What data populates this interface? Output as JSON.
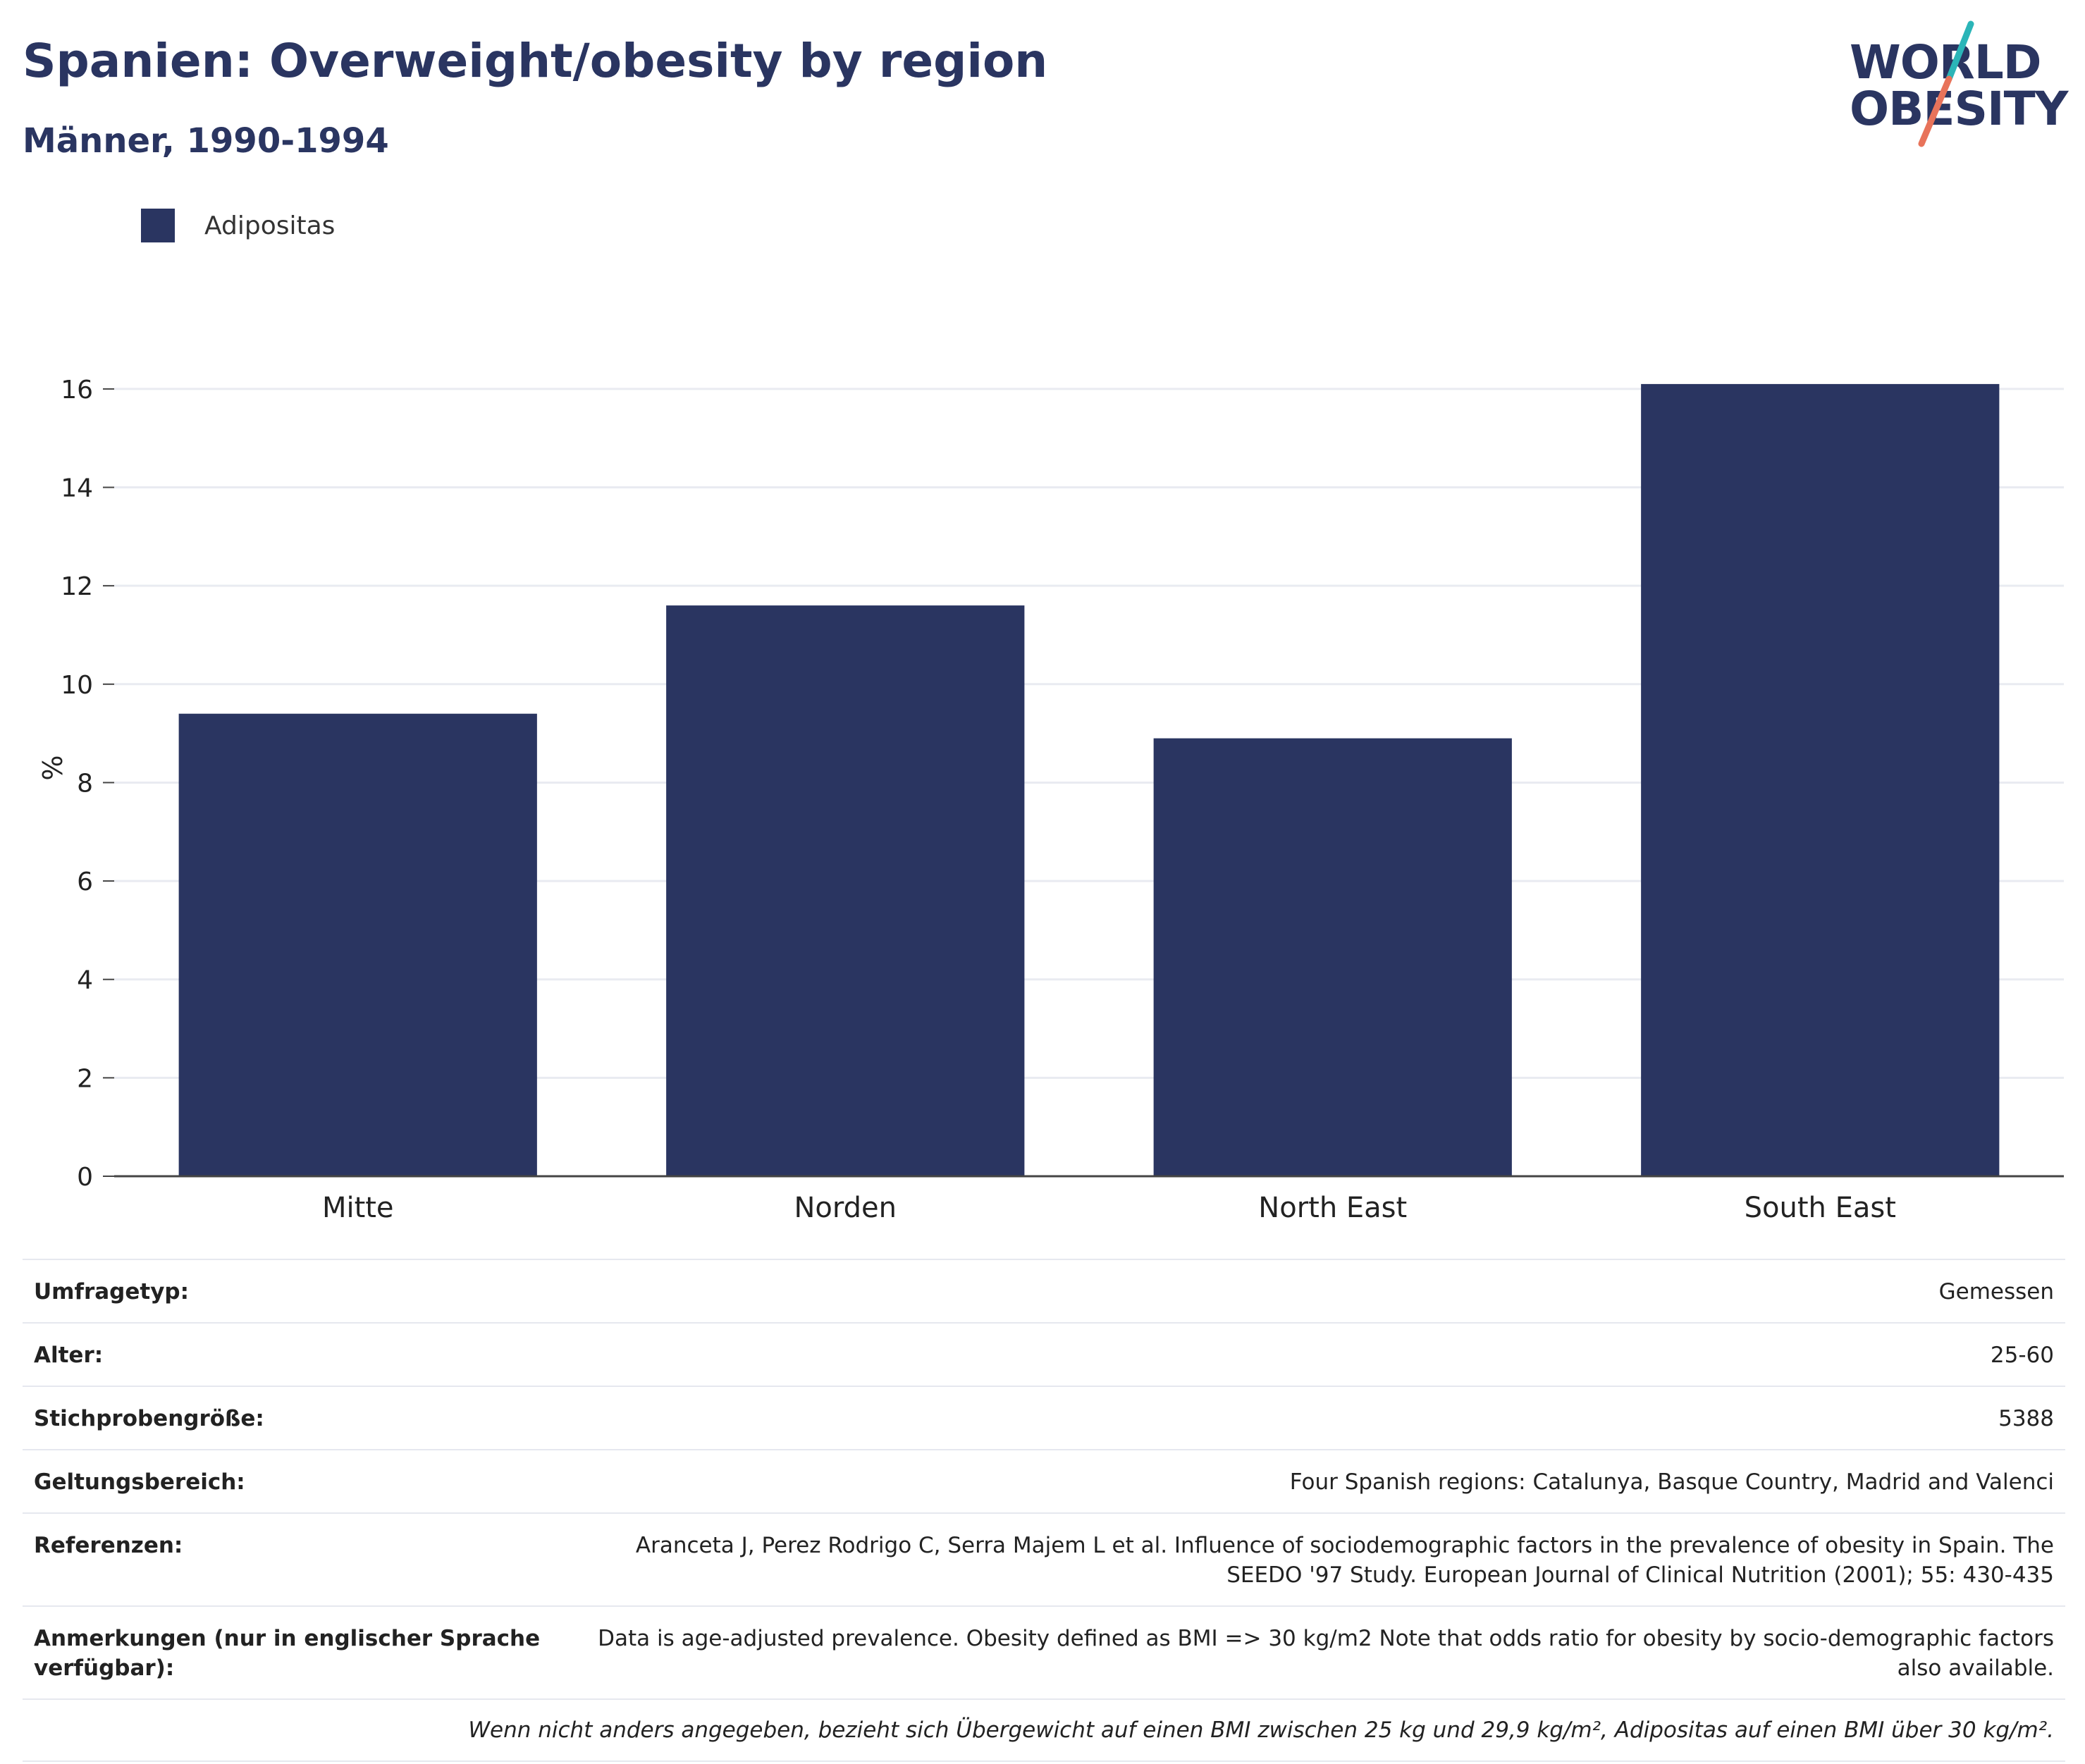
{
  "header": {
    "title": "Spanien: Overweight/obesity by region",
    "subtitle": "Männer, 1990-1994",
    "logo_line1": "WORLD",
    "logo_line2": "OBESITY"
  },
  "colors": {
    "bar": "#2a3561",
    "grid": "#e9ebf1",
    "axis": "#444444",
    "logo_teal": "#2bb5b8",
    "logo_coral": "#e8735a"
  },
  "chart_data": {
    "type": "bar",
    "categories": [
      "Mitte",
      "Norden",
      "North East",
      "South East"
    ],
    "series": [
      {
        "name": "Adipositas",
        "values": [
          9.4,
          11.6,
          8.9,
          16.1
        ]
      }
    ],
    "title": "Spanien: Overweight/obesity by region",
    "subtitle": "Männer, 1990-1994",
    "xlabel": "",
    "ylabel": "%",
    "ylim": [
      0,
      16.6
    ],
    "yticks": [
      0,
      2,
      4,
      6,
      8,
      10,
      12,
      14,
      16
    ],
    "grid": true,
    "legend": "top-left"
  },
  "info": {
    "rows": [
      {
        "key": "Umfragetyp:",
        "value": "Gemessen"
      },
      {
        "key": "Alter:",
        "value": "25-60"
      },
      {
        "key": "Stichprobengröße:",
        "value": "5388"
      },
      {
        "key": "Geltungsbereich:",
        "value": "Four Spanish regions: Catalunya, Basque Country, Madrid and Valenci"
      },
      {
        "key": "Referenzen:",
        "value": "Aranceta J, Perez Rodrigo C, Serra Majem L et al. Influence of sociodemographic factors in the prevalence of obesity in Spain. The SEEDO '97 Study. European Journal of Clinical Nutrition (2001); 55: 430-435"
      },
      {
        "key": "Anmerkungen (nur in englischer Sprache verfügbar):",
        "value": "Data is age-adjusted prevalence. Obesity defined as BMI => 30 kg/m2 Note that odds ratio for obesity by socio-demographic factors also available."
      }
    ],
    "note": "Wenn nicht anders angegeben, bezieht sich Übergewicht auf einen BMI zwischen 25 kg und 29,9 kg/m², Adipositas auf einen BMI über 30 kg/m²."
  }
}
